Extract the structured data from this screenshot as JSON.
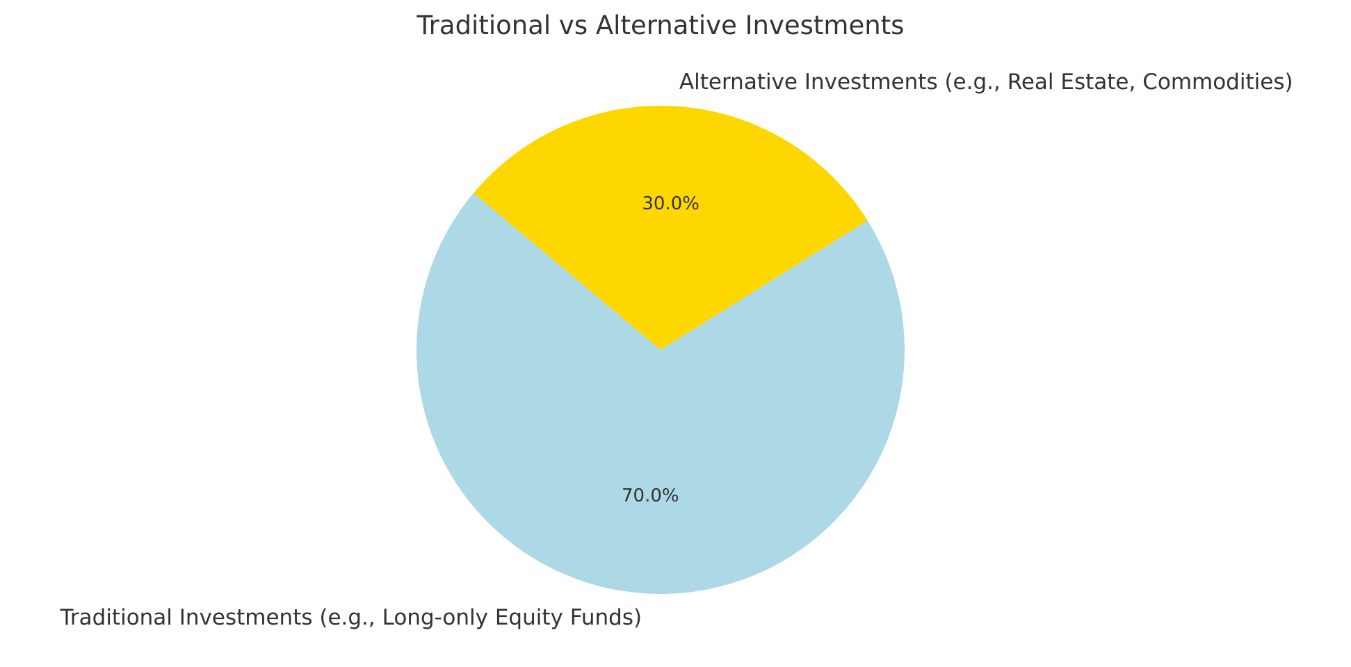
{
  "chart_data": {
    "type": "pie",
    "title": "Traditional vs Alternative Investments",
    "slices": [
      {
        "label": "Traditional Investments (e.g., Long-only Equity Funds)",
        "value": 70.0,
        "pct_label": "70.0%",
        "color": "#ADD8E6"
      },
      {
        "label": "Alternative Investments (e.g., Real Estate, Commodities)",
        "value": 30.0,
        "pct_label": "30.0%",
        "color": "#FFD700"
      }
    ],
    "start_angle_deg": 140,
    "direction": "counterclockwise",
    "legend": "none"
  }
}
